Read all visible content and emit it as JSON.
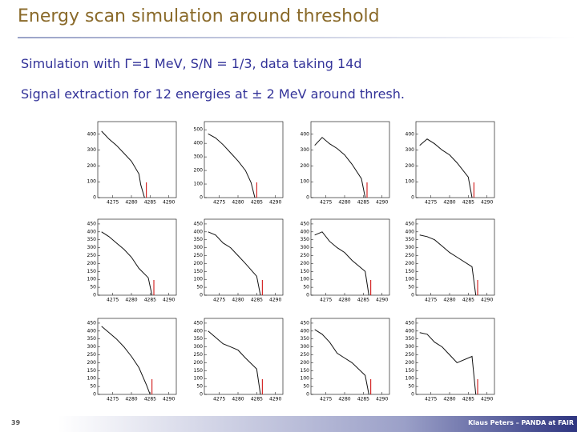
{
  "title": "Energy scan simulation around threshold",
  "bullets": [
    "Simulation with Γ=1 MeV, S/N = 1/3, data taking 14d",
    "Signal extraction for 12 energies at ± 2 MeV around thresh."
  ],
  "footer": {
    "page": "39",
    "author": "Klaus Peters – PANDA at FAIR"
  },
  "chart_data": [
    {
      "type": "line",
      "x": [
        4272,
        4274,
        4276,
        4278,
        4280,
        4282,
        4282.5,
        4283.5
      ],
      "values": [
        420,
        370,
        330,
        280,
        230,
        150,
        80,
        0
      ],
      "vline": 4284,
      "color": "#111111",
      "vline_color": "#cc0000",
      "xlim": [
        4271,
        4292
      ],
      "xticks": [
        4275,
        4280,
        4285,
        4290
      ],
      "ylim": [
        0,
        480
      ],
      "yticks": [
        0,
        100,
        200,
        300,
        400
      ]
    },
    {
      "type": "line",
      "x": [
        4272,
        4274,
        4276,
        4278,
        4280,
        4282,
        4283.5,
        4284.5
      ],
      "values": [
        470,
        440,
        390,
        330,
        270,
        200,
        110,
        0
      ],
      "vline": 4285,
      "color": "#111111",
      "vline_color": "#cc0000",
      "xlim": [
        4271,
        4292
      ],
      "xticks": [
        4275,
        4280,
        4285,
        4290
      ],
      "ylim": [
        0,
        560
      ],
      "yticks": [
        0,
        100,
        200,
        300,
        400,
        500
      ]
    },
    {
      "type": "line",
      "x": [
        4272,
        4274,
        4276,
        4278,
        4280,
        4282,
        4284.5,
        4285.5
      ],
      "values": [
        330,
        380,
        340,
        310,
        270,
        210,
        120,
        0
      ],
      "vline": 4286,
      "color": "#111111",
      "vline_color": "#cc0000",
      "xlim": [
        4271,
        4292
      ],
      "xticks": [
        4275,
        4280,
        4285,
        4290
      ],
      "ylim": [
        0,
        480
      ],
      "yticks": [
        0,
        100,
        200,
        300,
        400
      ]
    },
    {
      "type": "line",
      "x": [
        4272,
        4274,
        4276,
        4278,
        4280,
        4282,
        4285,
        4286
      ],
      "values": [
        330,
        370,
        340,
        300,
        270,
        220,
        130,
        0
      ],
      "vline": 4286.5,
      "color": "#111111",
      "vline_color": "#cc0000",
      "xlim": [
        4271,
        4292
      ],
      "xticks": [
        4275,
        4280,
        4285,
        4290
      ],
      "ylim": [
        0,
        480
      ],
      "yticks": [
        0,
        100,
        200,
        300,
        400
      ]
    },
    {
      "type": "line",
      "x": [
        4272,
        4274,
        4276,
        4278,
        4280,
        4282,
        4284.5,
        4285.5
      ],
      "values": [
        400,
        370,
        330,
        290,
        240,
        170,
        110,
        0
      ],
      "vline": 4286,
      "color": "#111111",
      "vline_color": "#cc0000",
      "xlim": [
        4271,
        4292
      ],
      "xticks": [
        4275,
        4280,
        4285,
        4290
      ],
      "ylim": [
        0,
        480
      ],
      "yticks": [
        0,
        50,
        100,
        150,
        200,
        250,
        300,
        350,
        400,
        450
      ]
    },
    {
      "type": "line",
      "x": [
        4272,
        4274,
        4276,
        4278,
        4280,
        4282,
        4285,
        4286
      ],
      "values": [
        400,
        380,
        330,
        300,
        250,
        200,
        120,
        0
      ],
      "vline": 4286.5,
      "color": "#111111",
      "vline_color": "#cc0000",
      "xlim": [
        4271,
        4292
      ],
      "xticks": [
        4275,
        4280,
        4285,
        4290
      ],
      "ylim": [
        0,
        480
      ],
      "yticks": [
        0,
        50,
        100,
        150,
        200,
        250,
        300,
        350,
        400,
        450
      ]
    },
    {
      "type": "line",
      "x": [
        4272,
        4274,
        4276,
        4278,
        4280,
        4282,
        4285.5,
        4286.5
      ],
      "values": [
        380,
        400,
        340,
        300,
        270,
        220,
        150,
        0
      ],
      "vline": 4287,
      "color": "#111111",
      "vline_color": "#cc0000",
      "xlim": [
        4271,
        4292
      ],
      "xticks": [
        4275,
        4280,
        4285,
        4290
      ],
      "ylim": [
        0,
        480
      ],
      "yticks": [
        0,
        50,
        100,
        150,
        200,
        250,
        300,
        350,
        400,
        450
      ]
    },
    {
      "type": "line",
      "x": [
        4272,
        4274,
        4276,
        4278,
        4280,
        4282,
        4286,
        4287
      ],
      "values": [
        380,
        370,
        350,
        310,
        270,
        240,
        180,
        0
      ],
      "vline": 4287.5,
      "color": "#111111",
      "vline_color": "#cc0000",
      "xlim": [
        4271,
        4292
      ],
      "xticks": [
        4275,
        4280,
        4285,
        4290
      ],
      "ylim": [
        0,
        480
      ],
      "yticks": [
        0,
        50,
        100,
        150,
        200,
        250,
        300,
        350,
        400,
        450
      ]
    },
    {
      "type": "line",
      "x": [
        4272,
        4274,
        4276,
        4278,
        4280,
        4282,
        4284,
        4285
      ],
      "values": [
        430,
        390,
        350,
        300,
        240,
        170,
        60,
        0
      ],
      "vline": 4285.5,
      "color": "#111111",
      "vline_color": "#cc0000",
      "xlim": [
        4271,
        4292
      ],
      "xticks": [
        4275,
        4280,
        4285,
        4290
      ],
      "ylim": [
        0,
        480
      ],
      "yticks": [
        0,
        50,
        100,
        150,
        200,
        250,
        300,
        350,
        400,
        450
      ]
    },
    {
      "type": "line",
      "x": [
        4272,
        4274,
        4276,
        4278,
        4280,
        4282,
        4285,
        4286
      ],
      "values": [
        400,
        360,
        320,
        300,
        280,
        230,
        160,
        0
      ],
      "vline": 4286.5,
      "color": "#111111",
      "vline_color": "#cc0000",
      "xlim": [
        4271,
        4292
      ],
      "xticks": [
        4275,
        4280,
        4285,
        4290
      ],
      "ylim": [
        0,
        480
      ],
      "yticks": [
        0,
        50,
        100,
        150,
        200,
        250,
        300,
        350,
        400,
        450
      ]
    },
    {
      "type": "line",
      "x": [
        4272,
        4274,
        4276,
        4278,
        4280,
        4282,
        4285.5,
        4286.5
      ],
      "values": [
        410,
        380,
        330,
        260,
        230,
        200,
        120,
        0
      ],
      "vline": 4287,
      "color": "#111111",
      "vline_color": "#cc0000",
      "xlim": [
        4271,
        4292
      ],
      "xticks": [
        4275,
        4280,
        4285,
        4290
      ],
      "ylim": [
        0,
        480
      ],
      "yticks": [
        0,
        50,
        100,
        150,
        200,
        250,
        300,
        350,
        400,
        450
      ]
    },
    {
      "type": "line",
      "x": [
        4272,
        4274,
        4276,
        4278,
        4280,
        4282,
        4286,
        4287
      ],
      "values": [
        390,
        380,
        330,
        300,
        250,
        200,
        240,
        0
      ],
      "vline": 4287.5,
      "color": "#111111",
      "vline_color": "#cc0000",
      "xlim": [
        4271,
        4292
      ],
      "xticks": [
        4275,
        4280,
        4285,
        4290
      ],
      "ylim": [
        0,
        480
      ],
      "yticks": [
        0,
        50,
        100,
        150,
        200,
        250,
        300,
        350,
        400,
        450
      ]
    }
  ]
}
